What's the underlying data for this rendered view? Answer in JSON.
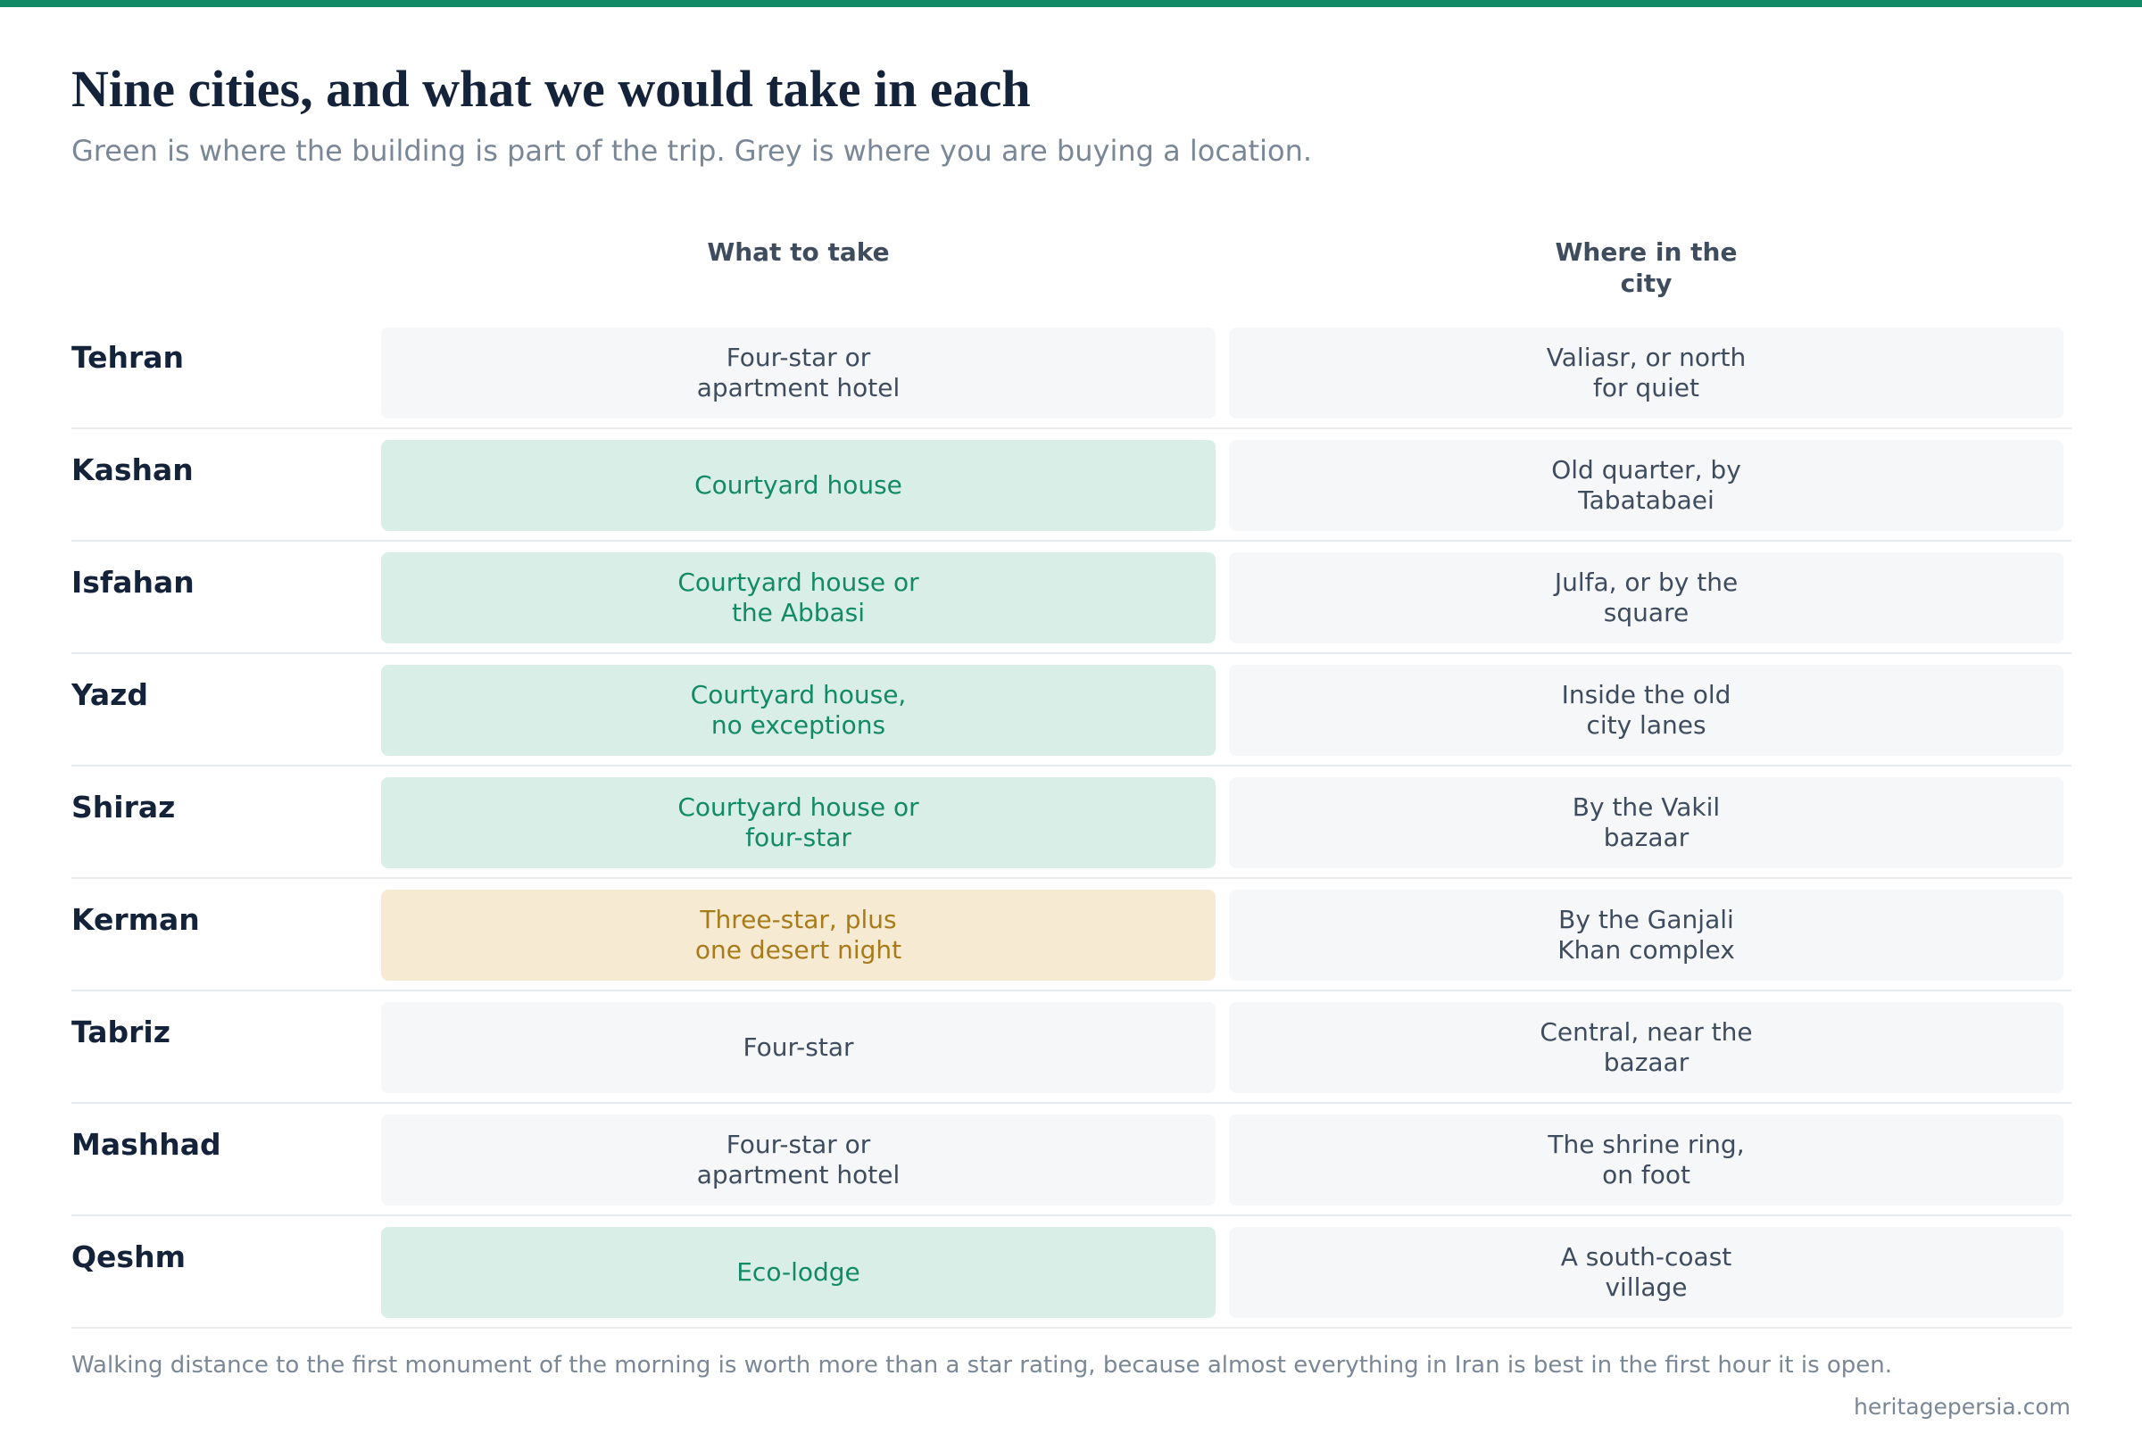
{
  "title": "Nine cities, and what we would take in each",
  "subtitle": "Green is where the building is part of the trip. Grey is where you are buying a location.",
  "colors": {
    "accent": "#128a66",
    "green_bg": "#d9eee6",
    "green_text": "#128a66",
    "grey_bg": "#f5f7f9",
    "grey_text": "#3e4c5e",
    "amber_bg": "#f7ead3",
    "amber_text": "#a77b1a"
  },
  "chart_data": {
    "type": "table",
    "columns": [
      "What to take",
      "Where in the\ncity"
    ],
    "rows": [
      {
        "city": "Tehran",
        "take": "Four-star or\napartment hotel",
        "where": "Valiasr, or north\nfor quiet",
        "style": "grey"
      },
      {
        "city": "Kashan",
        "take": "Courtyard house",
        "where": "Old quarter, by\nTabatabaei",
        "style": "green"
      },
      {
        "city": "Isfahan",
        "take": "Courtyard house or\nthe Abbasi",
        "where": "Julfa, or by the\nsquare",
        "style": "green"
      },
      {
        "city": "Yazd",
        "take": "Courtyard house,\nno exceptions",
        "where": "Inside the old\ncity lanes",
        "style": "green"
      },
      {
        "city": "Shiraz",
        "take": "Courtyard house or\nfour-star",
        "where": "By the Vakil\nbazaar",
        "style": "green"
      },
      {
        "city": "Kerman",
        "take": "Three-star, plus\none desert night",
        "where": "By the Ganjali\nKhan complex",
        "style": "amber"
      },
      {
        "city": "Tabriz",
        "take": "Four-star",
        "where": "Central, near the\nbazaar",
        "style": "grey"
      },
      {
        "city": "Mashhad",
        "take": "Four-star or\napartment hotel",
        "where": "The shrine ring,\non foot",
        "style": "grey"
      },
      {
        "city": "Qeshm",
        "take": "Eco-lodge",
        "where": "A south-coast\nvillage",
        "style": "green"
      }
    ]
  },
  "note": "Walking distance to the first monument of the morning is worth more than a star rating, because almost everything in Iran is best in the first hour it is open.",
  "source": "heritagepersia.com"
}
